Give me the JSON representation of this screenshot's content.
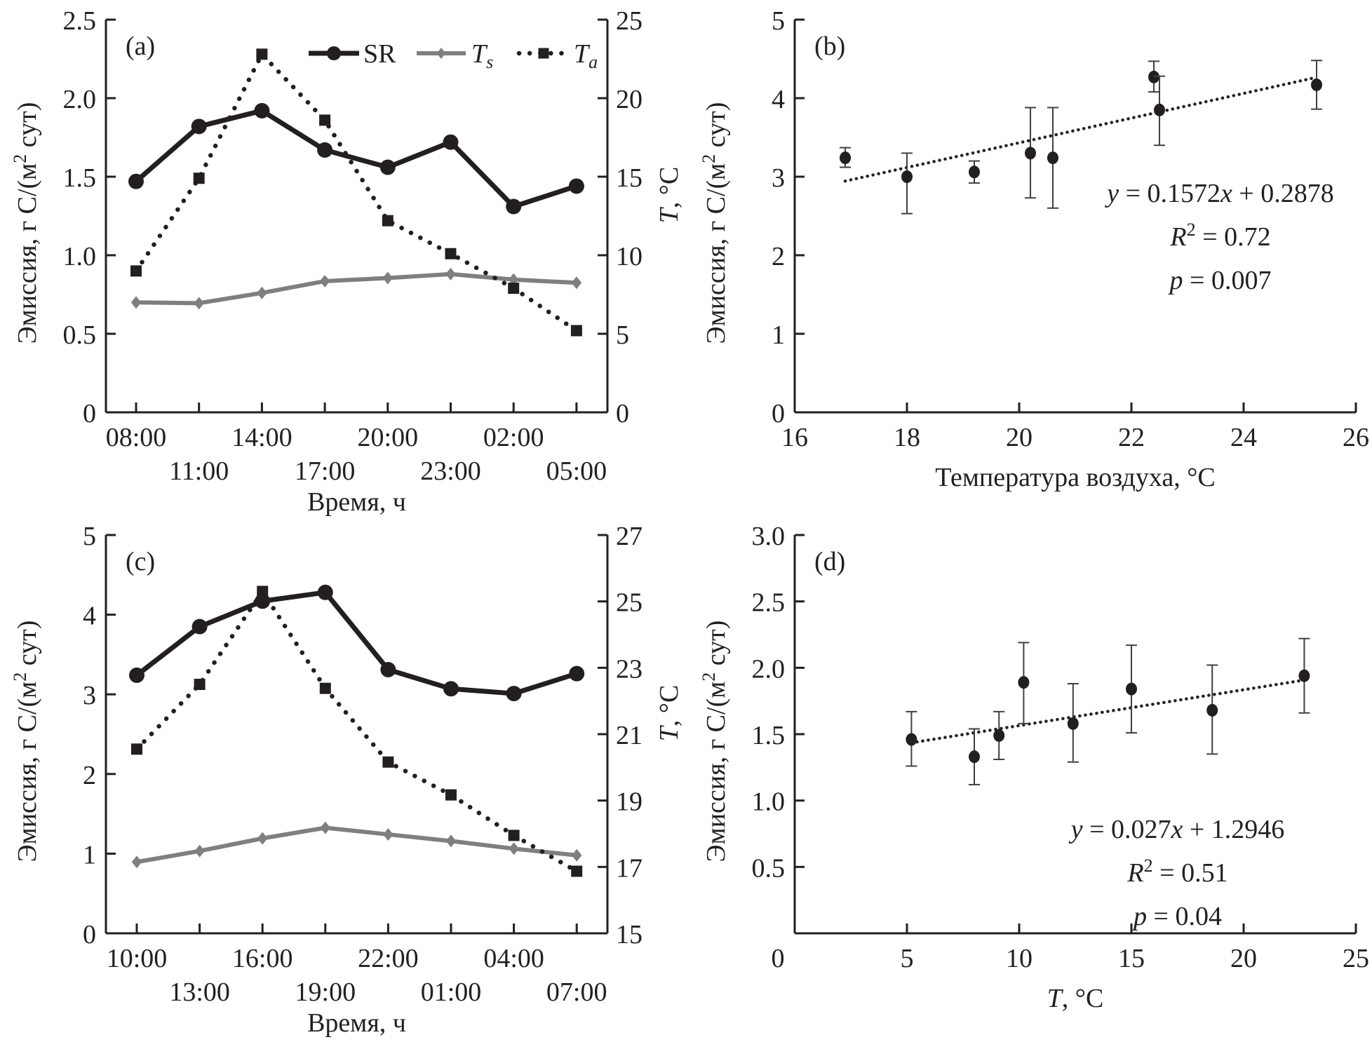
{
  "chart_data": [
    {
      "id": "a",
      "type": "line",
      "panel_label": "(a)",
      "xlabel": "Время, ч",
      "ylabel": "Эмиссия, г C/(м² сут)",
      "ylabel_right": "T, °C",
      "categories": [
        "08:00",
        "11:00",
        "14:00",
        "17:00",
        "20:00",
        "23:00",
        "02:00",
        "05:00"
      ],
      "ylim": [
        0,
        2.5
      ],
      "yticks": [
        "0",
        "0.5",
        "1.0",
        "1.5",
        "2.0",
        "2.5"
      ],
      "ylim_right": [
        0,
        25
      ],
      "yticks_right": [
        "0",
        "5",
        "10",
        "15",
        "20",
        "25"
      ],
      "legend": {
        "placement": "top-right",
        "entries": [
          "SR",
          "Ts",
          "Ta"
        ]
      },
      "series": [
        {
          "name": "SR",
          "axis": "left",
          "style": "solid-black-circle",
          "values": [
            1.47,
            1.82,
            1.92,
            1.67,
            1.56,
            1.72,
            1.31,
            1.44
          ]
        },
        {
          "name": "Ts",
          "axis": "right",
          "style": "solid-gray-diamond",
          "values": [
            7.0,
            6.95,
            7.6,
            8.35,
            8.55,
            8.8,
            8.45,
            8.25
          ]
        },
        {
          "name": "Ta",
          "axis": "right",
          "style": "dotted-black-square",
          "values": [
            9.0,
            14.9,
            22.8,
            18.6,
            12.2,
            10.1,
            7.9,
            5.2
          ]
        }
      ]
    },
    {
      "id": "b",
      "type": "scatter",
      "panel_label": "(b)",
      "xlabel": "Температура воздуха, °C",
      "ylabel": "Эмиссия, г C/(м² сут)",
      "xlim": [
        16,
        26
      ],
      "xticks": [
        "16",
        "18",
        "20",
        "22",
        "24",
        "26"
      ],
      "ylim": [
        0,
        5
      ],
      "yticks": [
        "0",
        "1",
        "2",
        "3",
        "4",
        "5"
      ],
      "points": [
        {
          "x": 16.9,
          "y": 3.24,
          "err_low": 3.12,
          "err_high": 3.37
        },
        {
          "x": 18.0,
          "y": 3.0,
          "err_low": 2.53,
          "err_high": 3.3
        },
        {
          "x": 19.2,
          "y": 3.06,
          "err_low": 2.92,
          "err_high": 3.2
        },
        {
          "x": 20.2,
          "y": 3.3,
          "err_low": 2.73,
          "err_high": 3.88
        },
        {
          "x": 20.6,
          "y": 3.24,
          "err_low": 2.6,
          "err_high": 3.88
        },
        {
          "x": 22.4,
          "y": 4.27,
          "err_low": 4.08,
          "err_high": 4.47
        },
        {
          "x": 22.5,
          "y": 3.85,
          "err_low": 3.4,
          "err_high": 4.28
        },
        {
          "x": 25.3,
          "y": 4.17,
          "err_low": 3.86,
          "err_high": 4.48
        }
      ],
      "trendline": {
        "slope": 0.1572,
        "intercept": 0.2878,
        "x_range": [
          16.9,
          25.3
        ]
      },
      "annotations": {
        "equation": "y = 0.1572x + 0.2878",
        "r2": "R² = 0.72",
        "p": "p = 0.007"
      }
    },
    {
      "id": "c",
      "type": "line",
      "panel_label": "(c)",
      "xlabel": "Время, ч",
      "ylabel": "Эмиссия, г C/(м² сут)",
      "ylabel_right": "T, °C",
      "categories": [
        "10:00",
        "13:00",
        "16:00",
        "19:00",
        "22:00",
        "01:00",
        "04:00",
        "07:00"
      ],
      "ylim": [
        0,
        5
      ],
      "yticks": [
        "0",
        "1",
        "2",
        "3",
        "4",
        "5"
      ],
      "ylim_right": [
        15,
        27
      ],
      "yticks_right": [
        "15",
        "17",
        "19",
        "21",
        "23",
        "25",
        "27"
      ],
      "series": [
        {
          "name": "SR",
          "axis": "left",
          "style": "solid-black-circle",
          "values": [
            3.24,
            3.85,
            4.17,
            4.28,
            3.31,
            3.07,
            3.01,
            3.26
          ]
        },
        {
          "name": "Ts",
          "axis": "right",
          "style": "solid-gray-diamond",
          "values": [
            17.15,
            17.48,
            17.86,
            18.18,
            17.98,
            17.78,
            17.55,
            17.35
          ]
        },
        {
          "name": "Ta",
          "axis": "right",
          "style": "dotted-black-square",
          "values": [
            20.55,
            22.5,
            25.3,
            22.38,
            20.16,
            19.17,
            17.95,
            16.87
          ]
        }
      ]
    },
    {
      "id": "d",
      "type": "scatter",
      "panel_label": "(d)",
      "xlabel": "T, °C",
      "ylabel": "Эмиссия, г C/(м² сут)",
      "xlim": [
        0,
        25
      ],
      "xticks": [
        "0",
        "5",
        "10",
        "15",
        "20",
        "25"
      ],
      "ylim": [
        0,
        3.0
      ],
      "yticks": [
        "0.5",
        "1.0",
        "1.5",
        "2.0",
        "2.5",
        "3.0"
      ],
      "points": [
        {
          "x": 5.2,
          "y": 1.46,
          "err_low": 1.26,
          "err_high": 1.67
        },
        {
          "x": 8.0,
          "y": 1.33,
          "err_low": 1.12,
          "err_high": 1.54
        },
        {
          "x": 9.1,
          "y": 1.49,
          "err_low": 1.31,
          "err_high": 1.67
        },
        {
          "x": 10.2,
          "y": 1.89,
          "err_low": 1.58,
          "err_high": 2.19
        },
        {
          "x": 12.4,
          "y": 1.58,
          "err_low": 1.29,
          "err_high": 1.88
        },
        {
          "x": 15.0,
          "y": 1.84,
          "err_low": 1.51,
          "err_high": 2.17
        },
        {
          "x": 18.6,
          "y": 1.68,
          "err_low": 1.35,
          "err_high": 2.02
        },
        {
          "x": 22.7,
          "y": 1.94,
          "err_low": 1.66,
          "err_high": 2.22
        }
      ],
      "trendline": {
        "slope": 0.027,
        "intercept": 1.2946,
        "x_range": [
          5.2,
          22.7
        ]
      },
      "annotations": {
        "equation": "y = 0.027x + 1.2946",
        "r2": "R² = 0.51",
        "p": "p = 0.04"
      }
    }
  ]
}
